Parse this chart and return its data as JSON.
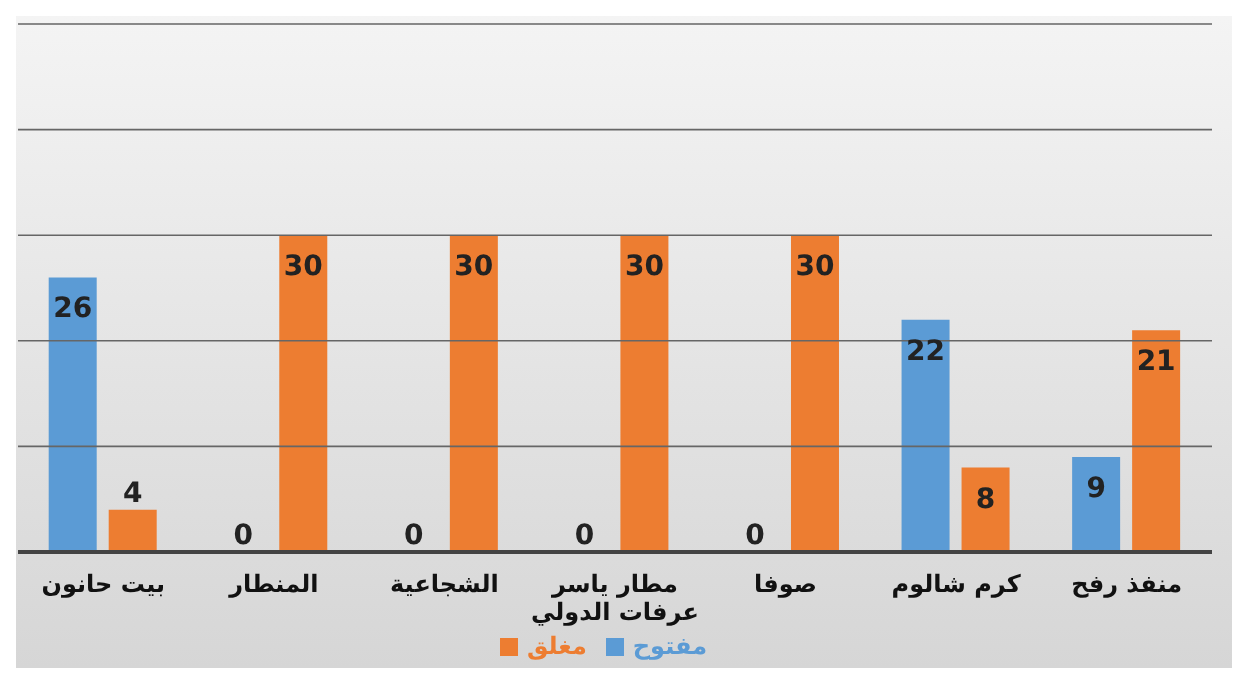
{
  "chart_data": {
    "type": "bar",
    "categories": [
      "بيت حانون",
      "المنطار",
      "الشجاعية",
      "مطار ياسر عرفات الدولي",
      "صوفا",
      "كرم شالوم",
      "منفذ رفح"
    ],
    "series": [
      {
        "name": "مفتوح",
        "color": "#5b9bd5",
        "values": [
          26,
          0,
          0,
          0,
          0,
          22,
          9
        ]
      },
      {
        "name": "مغلق",
        "color": "#ed7d31",
        "values": [
          4,
          30,
          30,
          30,
          30,
          8,
          21
        ]
      }
    ],
    "ylim": [
      0,
      50
    ],
    "yticks": [
      0,
      10,
      20,
      30,
      40,
      50
    ],
    "grid": "y",
    "tick_labels": "x",
    "data_labels": true,
    "legend": "bottom"
  }
}
